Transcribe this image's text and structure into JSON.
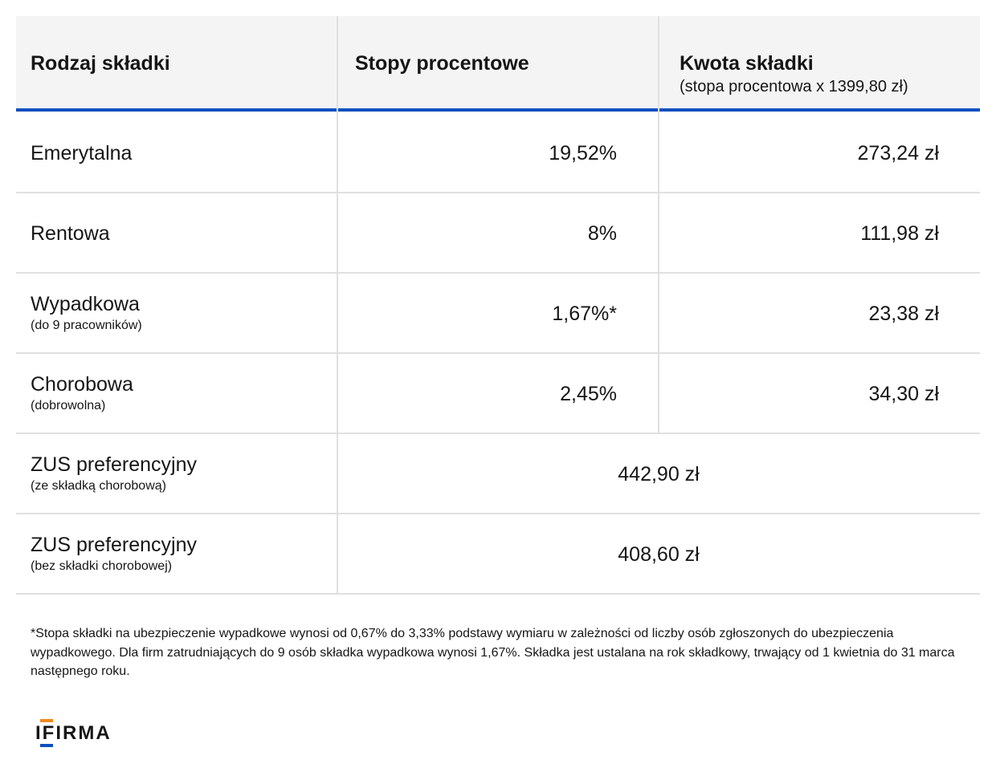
{
  "table": {
    "header": [
      {
        "title": "Rodzaj składki"
      },
      {
        "title": "Stopy procentowe"
      },
      {
        "title": "Kwota składki",
        "subtitle": "(stopa procentowa x 1399,80 zł)"
      }
    ],
    "rows": [
      {
        "name": "Emerytalna",
        "rate": "19,52%",
        "amount": "273,24 zł"
      },
      {
        "name": "Rentowa",
        "rate": "8%",
        "amount": "111,98 zł"
      },
      {
        "name": "Wypadkowa",
        "note": "(do 9 pracowników)",
        "rate": "1,67%*",
        "amount": "23,38 zł"
      },
      {
        "name": "Chorobowa",
        "note": "(dobrowolna)",
        "rate": "2,45%",
        "amount": "34,30 zł"
      },
      {
        "name": "ZUS preferencyjny",
        "note": "(ze składką chorobową)",
        "total": "442,90 zł"
      },
      {
        "name": "ZUS preferencyjny",
        "note": "(bez składki chorobowej)",
        "total": "408,60 zł"
      }
    ]
  },
  "footnote": "*Stopa składki na ubezpieczenie wypadkowe wynosi od 0,67% do 3,33% podstawy wymiaru w zależności od liczby osób zgłoszonych do ubezpieczenia wypadkowego. Dla firm zatrudniających do 9 osób składka wypadkowa wynosi 1,67%. Składka jest ustalana na rok składkowy, trwający od 1 kwietnia do 31 marca następnego roku.",
  "logo": "IFIRMA"
}
